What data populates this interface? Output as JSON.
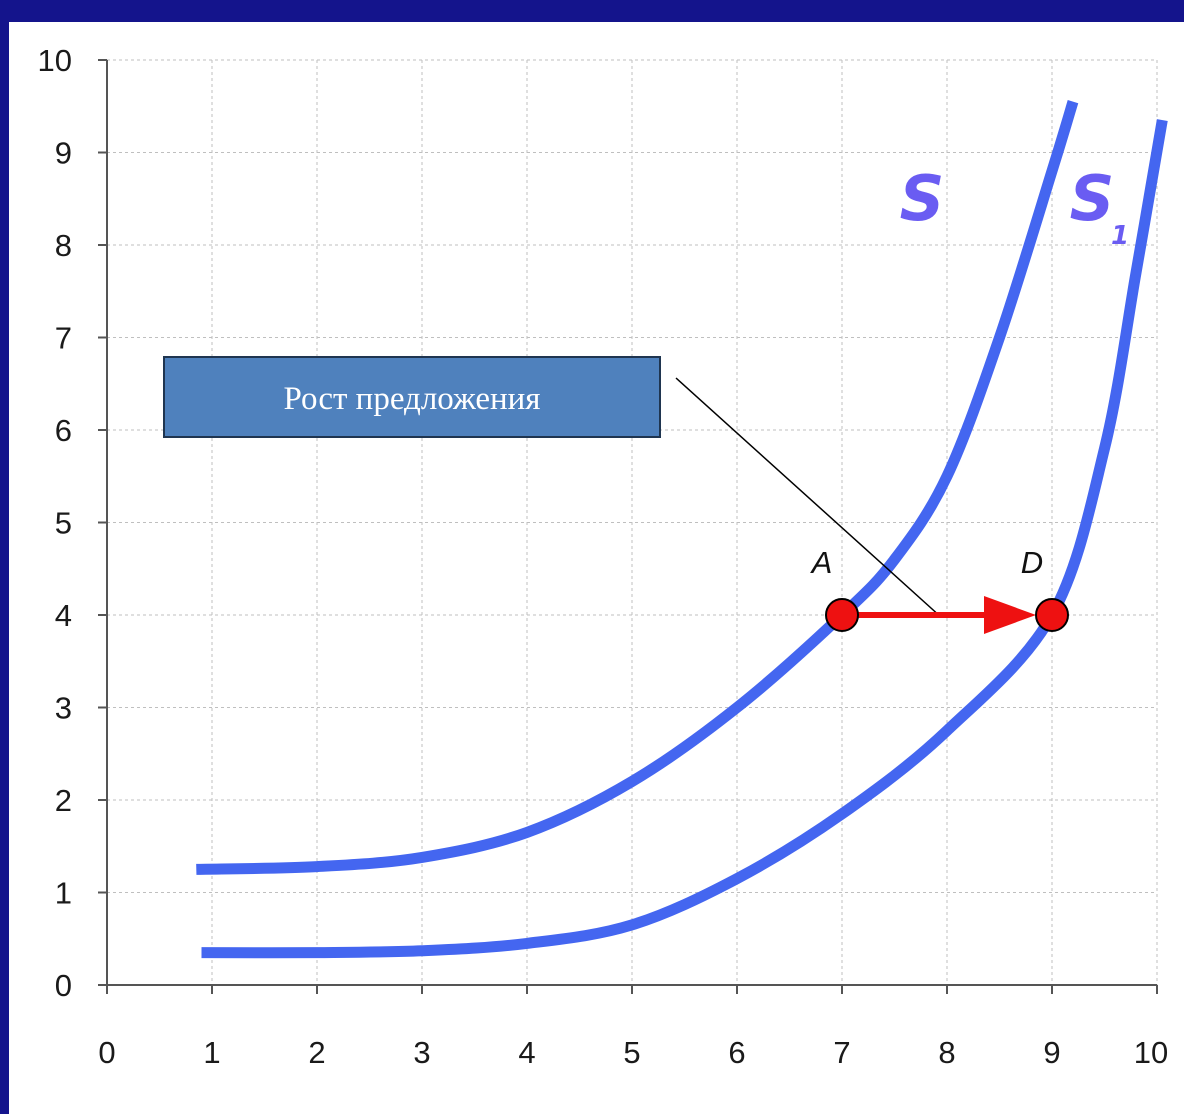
{
  "colors": {
    "frame": "#14148c",
    "curve": "#4466f0",
    "curve_label": "#6a5cf2",
    "arrow": "#ee1111",
    "point_fill": "#ee1111",
    "callout_fill": "#4f81bd",
    "grid": "#bfbfbf"
  },
  "chart_data": {
    "type": "line",
    "xlim": [
      0,
      10
    ],
    "ylim": [
      0,
      10
    ],
    "x_ticks": [
      "0",
      "1",
      "2",
      "3",
      "4",
      "5",
      "6",
      "7",
      "8",
      "9",
      "10"
    ],
    "y_ticks": [
      "0",
      "1",
      "2",
      "3",
      "4",
      "5",
      "6",
      "7",
      "8",
      "9",
      "10"
    ],
    "grid": true,
    "series": [
      {
        "name": "S",
        "points": [
          [
            0.85,
            1.25
          ],
          [
            2.0,
            1.28
          ],
          [
            3.0,
            1.38
          ],
          [
            4.0,
            1.65
          ],
          [
            5.0,
            2.2
          ],
          [
            6.0,
            3.0
          ],
          [
            7.0,
            4.0
          ],
          [
            7.5,
            4.6
          ],
          [
            8.0,
            5.5
          ],
          [
            8.5,
            7.0
          ],
          [
            9.0,
            8.8
          ],
          [
            9.2,
            9.55
          ]
        ]
      },
      {
        "name": "S",
        "subscript": "1",
        "points": [
          [
            0.9,
            0.35
          ],
          [
            2.0,
            0.35
          ],
          [
            3.0,
            0.37
          ],
          [
            4.0,
            0.45
          ],
          [
            5.0,
            0.65
          ],
          [
            6.0,
            1.15
          ],
          [
            7.0,
            1.85
          ],
          [
            8.0,
            2.75
          ],
          [
            9.0,
            4.0
          ],
          [
            9.5,
            5.8
          ],
          [
            9.8,
            7.7
          ],
          [
            10.05,
            9.35
          ]
        ]
      }
    ],
    "points": [
      {
        "label": "A",
        "x": 7,
        "y": 4
      },
      {
        "label": "D",
        "x": 9,
        "y": 4
      }
    ],
    "callout": {
      "text": "Рост предложения",
      "target": [
        7.9,
        4
      ]
    }
  }
}
